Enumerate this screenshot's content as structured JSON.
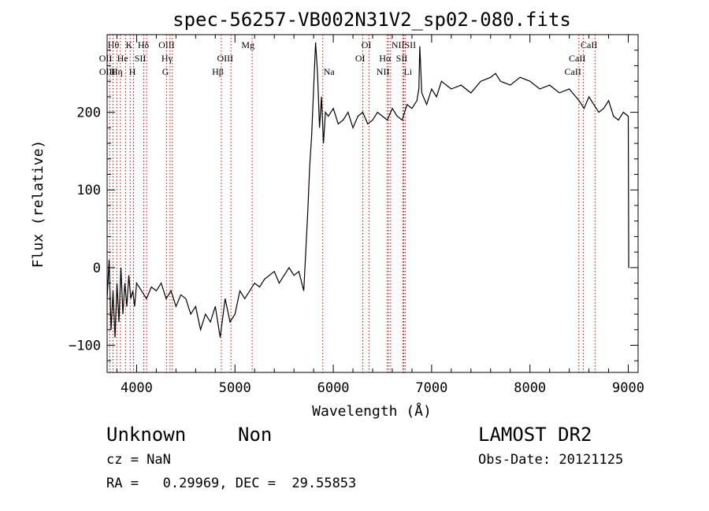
{
  "chart_data": {
    "type": "line",
    "title": "spec-56257-VB002N31V2_sp02-080.fits",
    "xlabel": "Wavelength (Å)",
    "ylabel": "Flux (relative)",
    "xlim": [
      3700,
      9100
    ],
    "ylim": [
      -135,
      300
    ],
    "xticks": [
      4000,
      5000,
      6000,
      7000,
      8000,
      9000
    ],
    "yticks": [
      -100,
      0,
      100,
      200
    ],
    "grid": false,
    "line_color": "#000000",
    "marker_color": "#cc0000",
    "series": [
      {
        "x": [
          3700,
          3720,
          3740,
          3760,
          3780,
          3800,
          3820,
          3840,
          3860,
          3880,
          3900,
          3920,
          3940,
          3960,
          3980,
          4000,
          4050,
          4100,
          4150,
          4200,
          4250,
          4300,
          4350,
          4400,
          4450,
          4500,
          4550,
          4600,
          4650,
          4700,
          4750,
          4800,
          4850,
          4900,
          4950,
          5000,
          5050,
          5100,
          5150,
          5200,
          5250,
          5300,
          5350,
          5400,
          5450,
          5500,
          5550,
          5600,
          5650,
          5700,
          5720,
          5740,
          5760,
          5780,
          5800,
          5820,
          5840,
          5860,
          5880,
          5900,
          5920,
          5950,
          6000,
          6050,
          6100,
          6150,
          6200,
          6250,
          6300,
          6350,
          6400,
          6450,
          6500,
          6550,
          6600,
          6650,
          6700,
          6750,
          6800,
          6850,
          6870,
          6880,
          6900,
          6950,
          7000,
          7050,
          7100,
          7150,
          7200,
          7300,
          7400,
          7500,
          7600,
          7650,
          7700,
          7800,
          7900,
          8000,
          8100,
          8200,
          8300,
          8400,
          8500,
          8550,
          8600,
          8650,
          8700,
          8750,
          8800,
          8850,
          8900,
          8950,
          9000,
          9005,
          9010
        ],
        "y": [
          -40,
          10,
          -80,
          -30,
          -90,
          -20,
          -70,
          0,
          -60,
          -20,
          -50,
          -10,
          -40,
          -30,
          -50,
          -20,
          -30,
          -40,
          -25,
          -30,
          -20,
          -40,
          -30,
          -50,
          -35,
          -40,
          -60,
          -50,
          -80,
          -60,
          -70,
          -50,
          -90,
          -40,
          -70,
          -60,
          -30,
          -40,
          -30,
          -20,
          -25,
          -15,
          -10,
          -5,
          -20,
          -10,
          0,
          -10,
          -5,
          -30,
          20,
          70,
          130,
          170,
          230,
          290,
          250,
          180,
          220,
          160,
          200,
          195,
          205,
          185,
          190,
          200,
          180,
          195,
          200,
          185,
          190,
          200,
          195,
          190,
          205,
          195,
          190,
          210,
          205,
          215,
          230,
          285,
          225,
          210,
          230,
          220,
          240,
          235,
          230,
          235,
          225,
          240,
          245,
          250,
          240,
          235,
          245,
          240,
          230,
          235,
          225,
          230,
          215,
          205,
          220,
          210,
          200,
          205,
          215,
          195,
          190,
          200,
          195,
          0,
          0
        ]
      }
    ],
    "lines": [
      {
        "label": "Hθ",
        "x": 3798,
        "row": 0,
        "anchor": "end"
      },
      {
        "label": "K",
        "x": 3934,
        "row": 0,
        "anchor": "end"
      },
      {
        "label": "Hδ",
        "x": 4102,
        "row": 0,
        "anchor": "end"
      },
      {
        "label": "OIII",
        "x": 4363,
        "row": 0,
        "anchor": "end"
      },
      {
        "label": "Mg",
        "x": 5175,
        "row": 0,
        "anchor": "end"
      },
      {
        "label": "OI",
        "x": 6363,
        "row": 0,
        "anchor": "end"
      },
      {
        "label": "NII",
        "x": 6583,
        "row": 0,
        "anchor": "start"
      },
      {
        "label": "SII",
        "x": 6716,
        "row": 0,
        "anchor": "start"
      },
      {
        "label": "CaII",
        "x": 8662,
        "row": 0,
        "anchor": "end"
      },
      {
        "label": "OII",
        "x": 3727,
        "row": 1,
        "anchor": "end"
      },
      {
        "label": "He",
        "x": 3889,
        "row": 1,
        "anchor": "end"
      },
      {
        "label": "SII",
        "x": 4072,
        "row": 1,
        "anchor": "end"
      },
      {
        "label": "Hγ",
        "x": 4340,
        "row": 1,
        "anchor": "end"
      },
      {
        "label": "OIII",
        "x": 4959,
        "row": 1,
        "anchor": "end"
      },
      {
        "label": "OI",
        "x": 6300,
        "row": 1,
        "anchor": "end"
      },
      {
        "label": "Hα",
        "x": 6563,
        "row": 1,
        "anchor": "end"
      },
      {
        "label": "SII",
        "x": 6731,
        "row": 1,
        "anchor": "end"
      },
      {
        "label": "CaII",
        "x": 8542,
        "row": 1,
        "anchor": "end"
      },
      {
        "label": "OIII",
        "x": 3760,
        "row": 2,
        "anchor": "end"
      },
      {
        "label": "Hη",
        "x": 3835,
        "row": 2,
        "anchor": "end"
      },
      {
        "label": "H",
        "x": 3968,
        "row": 2,
        "anchor": "end"
      },
      {
        "label": "G",
        "x": 4304,
        "row": 2,
        "anchor": "end"
      },
      {
        "label": "Hβ",
        "x": 4861,
        "row": 2,
        "anchor": "end"
      },
      {
        "label": "Na",
        "x": 5893,
        "row": 2,
        "anchor": "start"
      },
      {
        "label": "NII",
        "x": 6548,
        "row": 2,
        "anchor": "end"
      },
      {
        "label": "Li",
        "x": 6708,
        "row": 2,
        "anchor": "start"
      },
      {
        "label": "CaII",
        "x": 8498,
        "row": 2,
        "anchor": "end"
      }
    ]
  },
  "info": {
    "object_class": "Unknown",
    "subclass": "Non",
    "survey": "LAMOST DR2",
    "cz": "cz = NaN",
    "obs_date": "Obs-Date: 20121125",
    "radec": "RA =   0.29969, DEC =  29.55853"
  }
}
